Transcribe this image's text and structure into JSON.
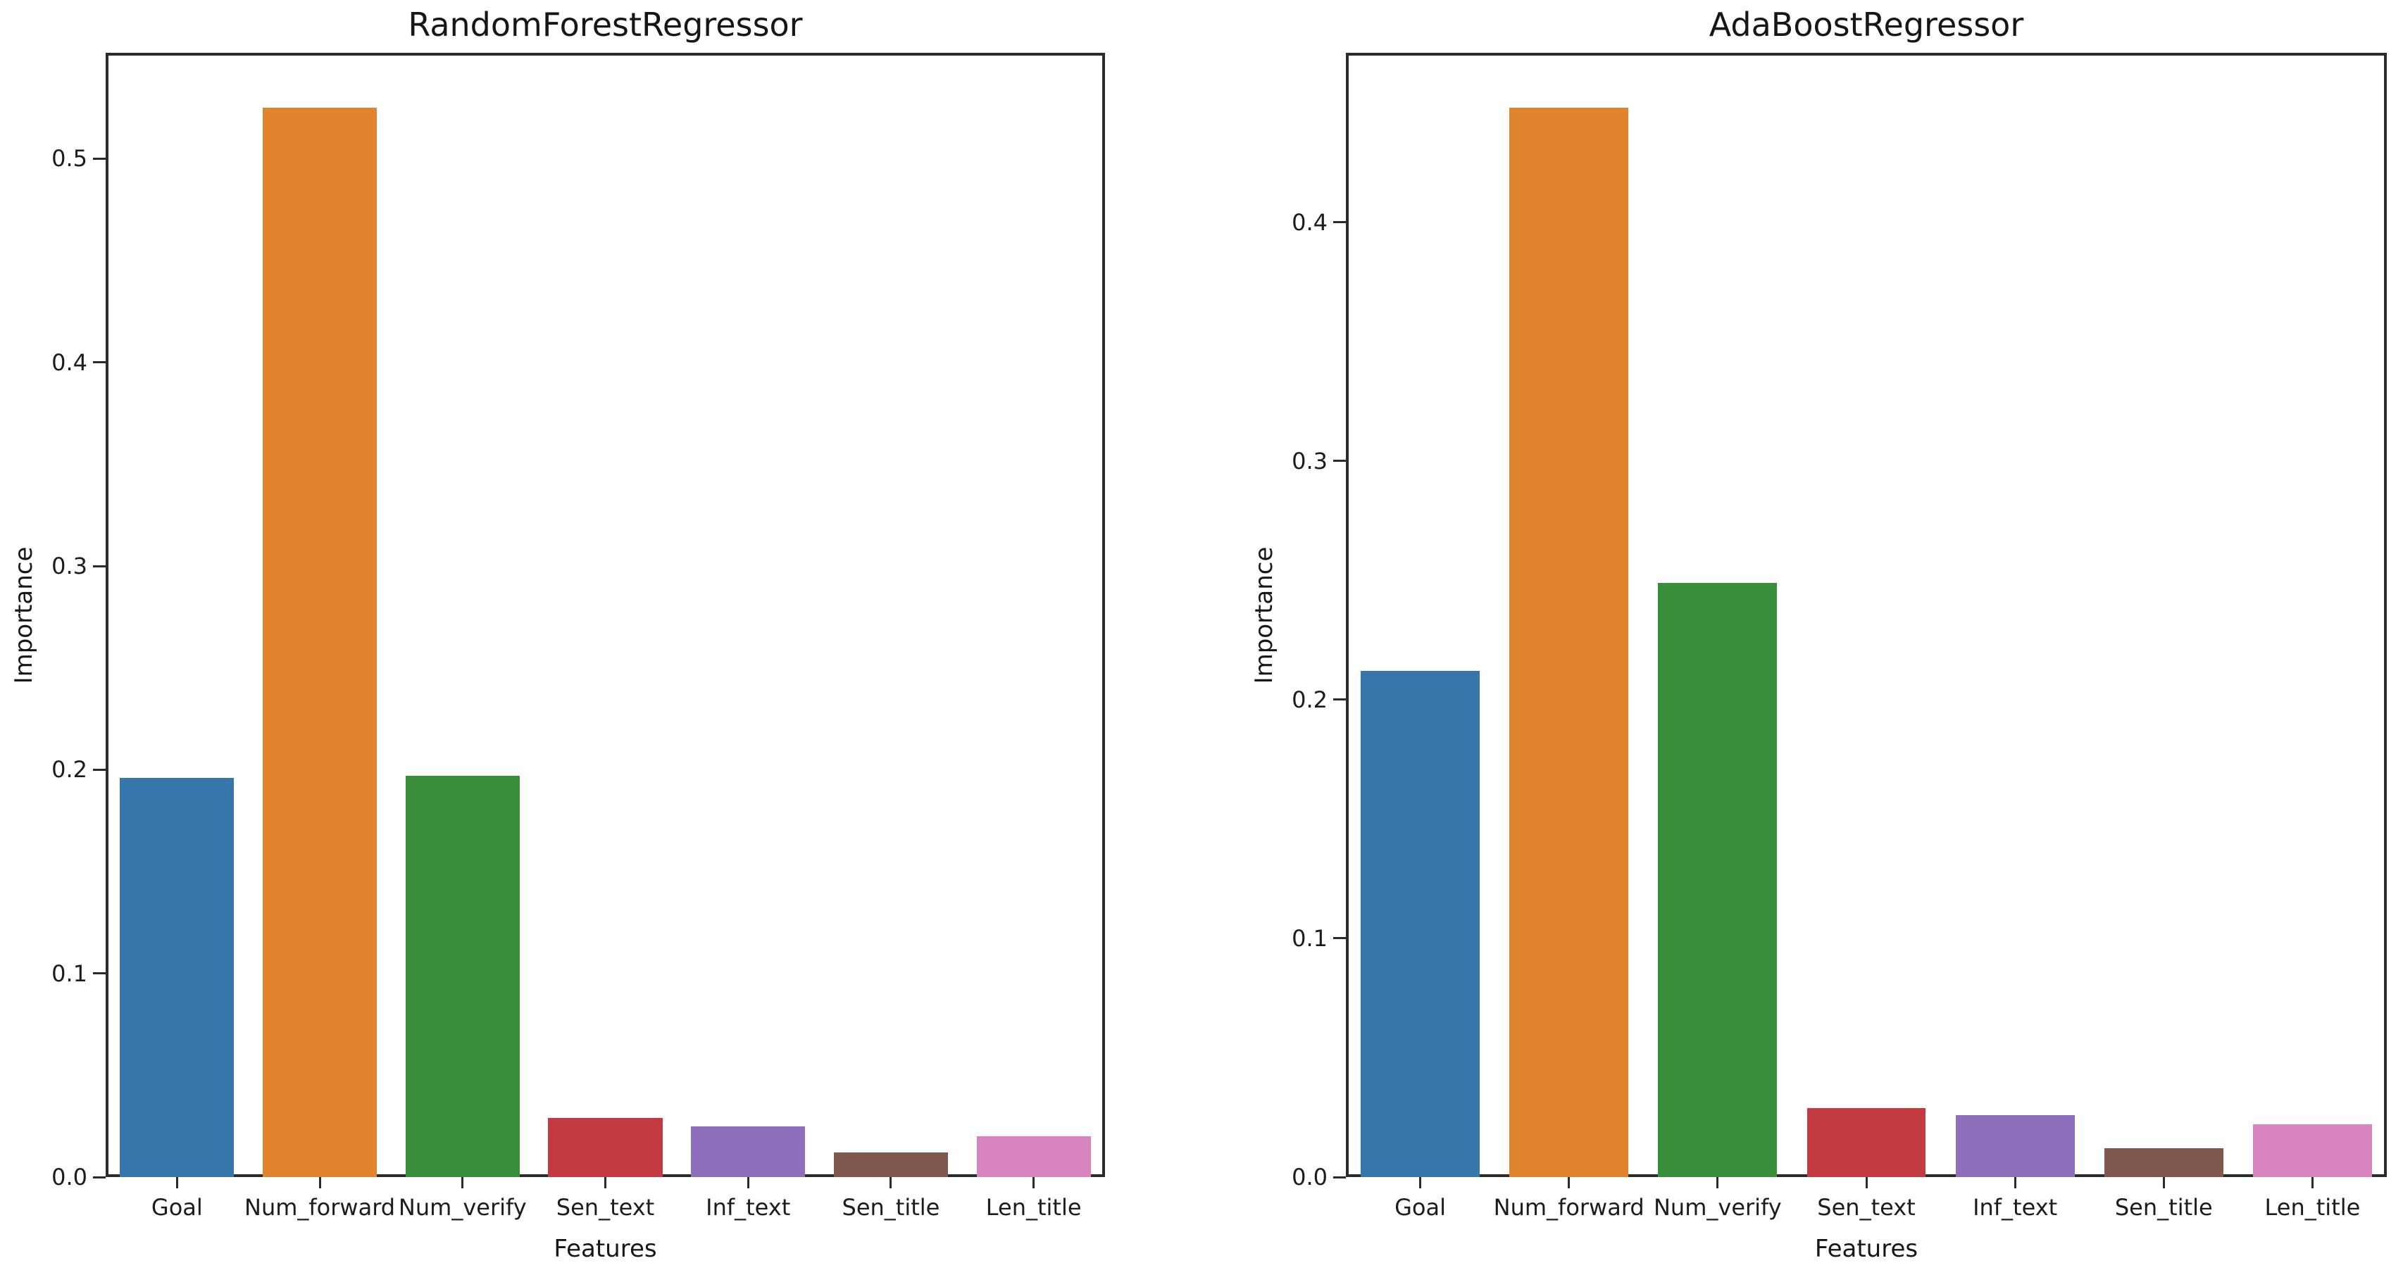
{
  "figure": {
    "background": "#ffffff",
    "text_color": "#1c1c1c",
    "spine_color": "#2b2b2b"
  },
  "palette": [
    "#3676ab",
    "#e0842e",
    "#3a8e3a",
    "#c23b40",
    "#8f6fbc",
    "#80584f",
    "#d983bf"
  ],
  "chart_data": [
    {
      "type": "bar",
      "title": "RandomForestRegressor",
      "xlabel": "Features",
      "ylabel": "Importance",
      "categories": [
        "Goal",
        "Num_forward",
        "Num_verify",
        "Sen_text",
        "Inf_text",
        "Sen_title",
        "Len_title"
      ],
      "values": [
        0.196,
        0.525,
        0.197,
        0.029,
        0.025,
        0.012,
        0.02
      ],
      "yticks": [
        "0.0",
        "0.1",
        "0.2",
        "0.3",
        "0.4",
        "0.5"
      ],
      "ylim": [
        0,
        0.552
      ],
      "grid": false,
      "legend": "none",
      "bar_width_fraction": 0.8
    },
    {
      "type": "bar",
      "title": "AdaBoostRegressor",
      "xlabel": "Features",
      "ylabel": "Importance",
      "categories": [
        "Goal",
        "Num_forward",
        "Num_verify",
        "Sen_text",
        "Inf_text",
        "Sen_title",
        "Len_title"
      ],
      "values": [
        0.212,
        0.448,
        0.249,
        0.029,
        0.026,
        0.012,
        0.022
      ],
      "yticks": [
        "0.0",
        "0.1",
        "0.2",
        "0.3",
        "0.4"
      ],
      "ylim": [
        0,
        0.471
      ],
      "grid": false,
      "legend": "none",
      "bar_width_fraction": 0.8
    }
  ]
}
